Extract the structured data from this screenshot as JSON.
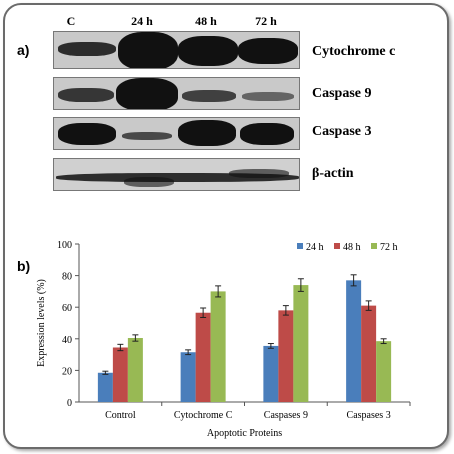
{
  "panel_a": {
    "label": "a)",
    "lanes": [
      "C",
      "24 h",
      "48 h",
      "72 h"
    ],
    "proteins": [
      "Cytochrome c",
      "Caspase 9",
      "Caspase 3",
      "β-actin"
    ]
  },
  "panel_b": {
    "label": "b)"
  },
  "chart_data": {
    "type": "bar",
    "categories": [
      "Control",
      "Cytochrome C",
      "Caspases 9",
      "Caspases 3"
    ],
    "series": [
      {
        "name": "24 h",
        "values": [
          18.5,
          31.5,
          35.5,
          77
        ],
        "errors": [
          1,
          1.5,
          1.5,
          3.5
        ],
        "color": "#4a7ebb"
      },
      {
        "name": "48 h",
        "values": [
          34.5,
          56.5,
          58,
          61
        ],
        "errors": [
          2,
          3,
          3,
          3
        ],
        "color": "#be4b48"
      },
      {
        "name": "72 h",
        "values": [
          40.5,
          70,
          74,
          38.5
        ],
        "errors": [
          2,
          3.5,
          4,
          1.5
        ],
        "color": "#98b954"
      }
    ],
    "xlabel": "Apoptotic Proteins",
    "ylabel": "Expression levels (%)",
    "ylim": [
      0,
      100
    ],
    "yticks": [
      0,
      20,
      40,
      60,
      80,
      100
    ],
    "legend_position": "top-right",
    "grid": false
  }
}
